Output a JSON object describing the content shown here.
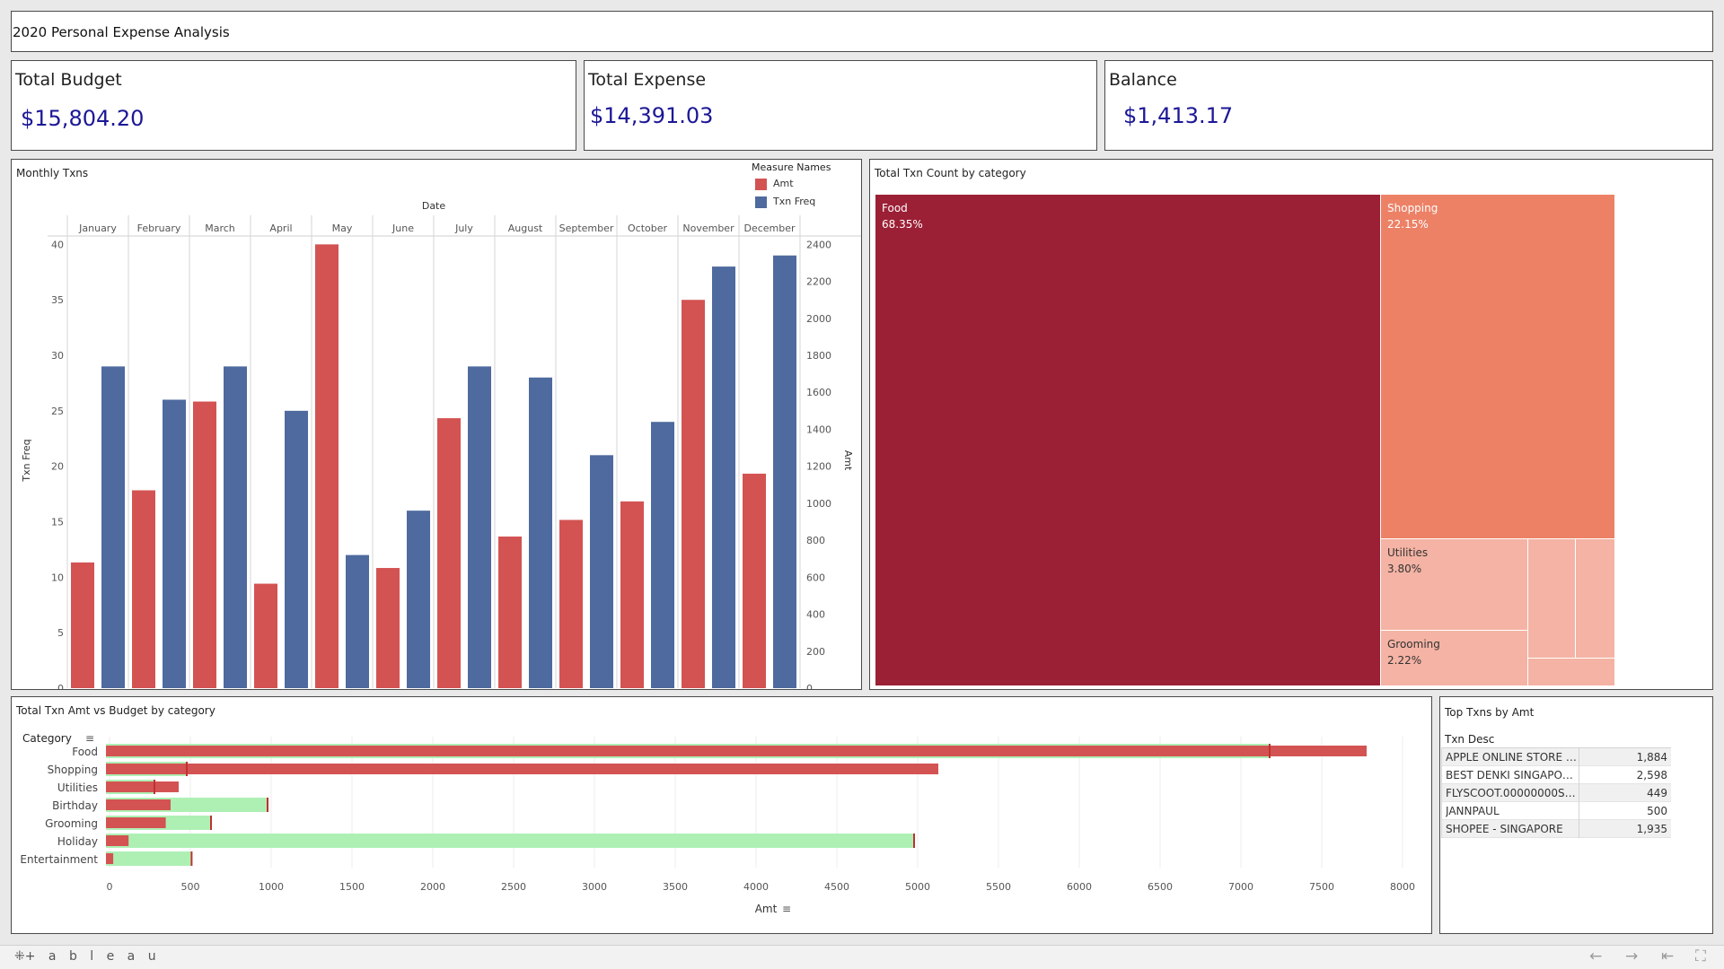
{
  "dashboard": {
    "title": "2020 Personal Expense Analysis"
  },
  "kpis": [
    {
      "title": "Total Budget",
      "value": "$15,804.20"
    },
    {
      "title": "Total Expense",
      "value": "$14,391.03"
    },
    {
      "title": "Balance",
      "value": "$1,413.17"
    }
  ],
  "monthly": {
    "title": "Monthly Txns",
    "legend_title": "Measure Names",
    "legend": [
      {
        "name": "Amt",
        "color": "#d35352"
      },
      {
        "name": "Txn Freq",
        "color": "#4e6a9e"
      }
    ]
  },
  "treemap": {
    "title": "Total Txn Count by category"
  },
  "budget_chart": {
    "title": "Total Txn Amt vs Budget by category"
  },
  "top_txns": {
    "title": "Top Txns by Amt",
    "col_header": "Txn Desc",
    "rows": [
      {
        "desc": "APPLE ONLINE STORE - S",
        "amt": "1,884"
      },
      {
        "desc": "BEST DENKI SINGAPORE..",
        "amt": "2,598"
      },
      {
        "desc": "FLYSCOOT.00000000S8..",
        "amt": "449"
      },
      {
        "desc": "JANNPAUL",
        "amt": "500"
      },
      {
        "desc": "SHOPEE - SINGAPORE",
        "amt": "1,935"
      }
    ]
  },
  "footer": {
    "brand": "+ a b l e a u",
    "nav_icons": [
      "back-icon",
      "forward-icon",
      "first-icon",
      "fullscreen-icon"
    ]
  },
  "chart_data": [
    {
      "type": "bar",
      "title": "Monthly Txns",
      "xlabel": "Date",
      "categories": [
        "January",
        "February",
        "March",
        "April",
        "May",
        "June",
        "July",
        "August",
        "September",
        "October",
        "November",
        "December"
      ],
      "y_left": {
        "label": "Txn Freq",
        "ticks": [
          0,
          5,
          10,
          15,
          20,
          25,
          30,
          35,
          40
        ],
        "range": [
          0,
          41
        ]
      },
      "y_right": {
        "label": "Amt",
        "ticks": [
          0,
          200,
          400,
          600,
          800,
          1000,
          1200,
          1400,
          1600,
          1800,
          2000,
          2200,
          2400
        ],
        "range": [
          0,
          2460
        ]
      },
      "series": [
        {
          "name": "Amt",
          "axis": "right",
          "color": "#d35352",
          "values": [
            680,
            1070,
            1550,
            565,
            2400,
            650,
            1460,
            820,
            910,
            1010,
            2100,
            1160
          ]
        },
        {
          "name": "Txn Freq",
          "axis": "left",
          "color": "#4e6a9e",
          "values": [
            29,
            26,
            29,
            25,
            12,
            16,
            29,
            28,
            21,
            24,
            38,
            39
          ]
        }
      ]
    },
    {
      "type": "treemap",
      "title": "Total Txn Count by category",
      "items": [
        {
          "name": "Food",
          "pct": "68.35%",
          "value": 68.35,
          "color": "#9b1f35"
        },
        {
          "name": "Shopping",
          "pct": "22.15%",
          "value": 22.15,
          "color": "#ec8166"
        },
        {
          "name": "Utilities",
          "pct": "3.80%",
          "value": 3.8,
          "color": "#f4b3a4"
        },
        {
          "name": "Grooming",
          "pct": "2.22%",
          "value": 2.22,
          "color": "#f4b3a4"
        }
      ]
    },
    {
      "type": "bar",
      "orientation": "horizontal",
      "title": "Total Txn Amt vs Budget by category",
      "y_header": "Category",
      "xlabel": "Amt",
      "xticks": [
        0,
        500,
        1000,
        1500,
        2000,
        2500,
        3000,
        3500,
        4000,
        4500,
        5000,
        5500,
        6000,
        6500,
        7000,
        7500,
        8000
      ],
      "categories": [
        "Food",
        "Shopping",
        "Utilities",
        "Birthday",
        "Grooming",
        "Holiday",
        "Entertainment"
      ],
      "series": [
        {
          "name": "Budget",
          "color": "#aef0b4",
          "values": [
            7200,
            500,
            300,
            1000,
            650,
            5000,
            530
          ]
        },
        {
          "name": "Amt",
          "color": "#d35352",
          "values": [
            7800,
            5150,
            450,
            400,
            370,
            140,
            45
          ]
        }
      ]
    }
  ]
}
